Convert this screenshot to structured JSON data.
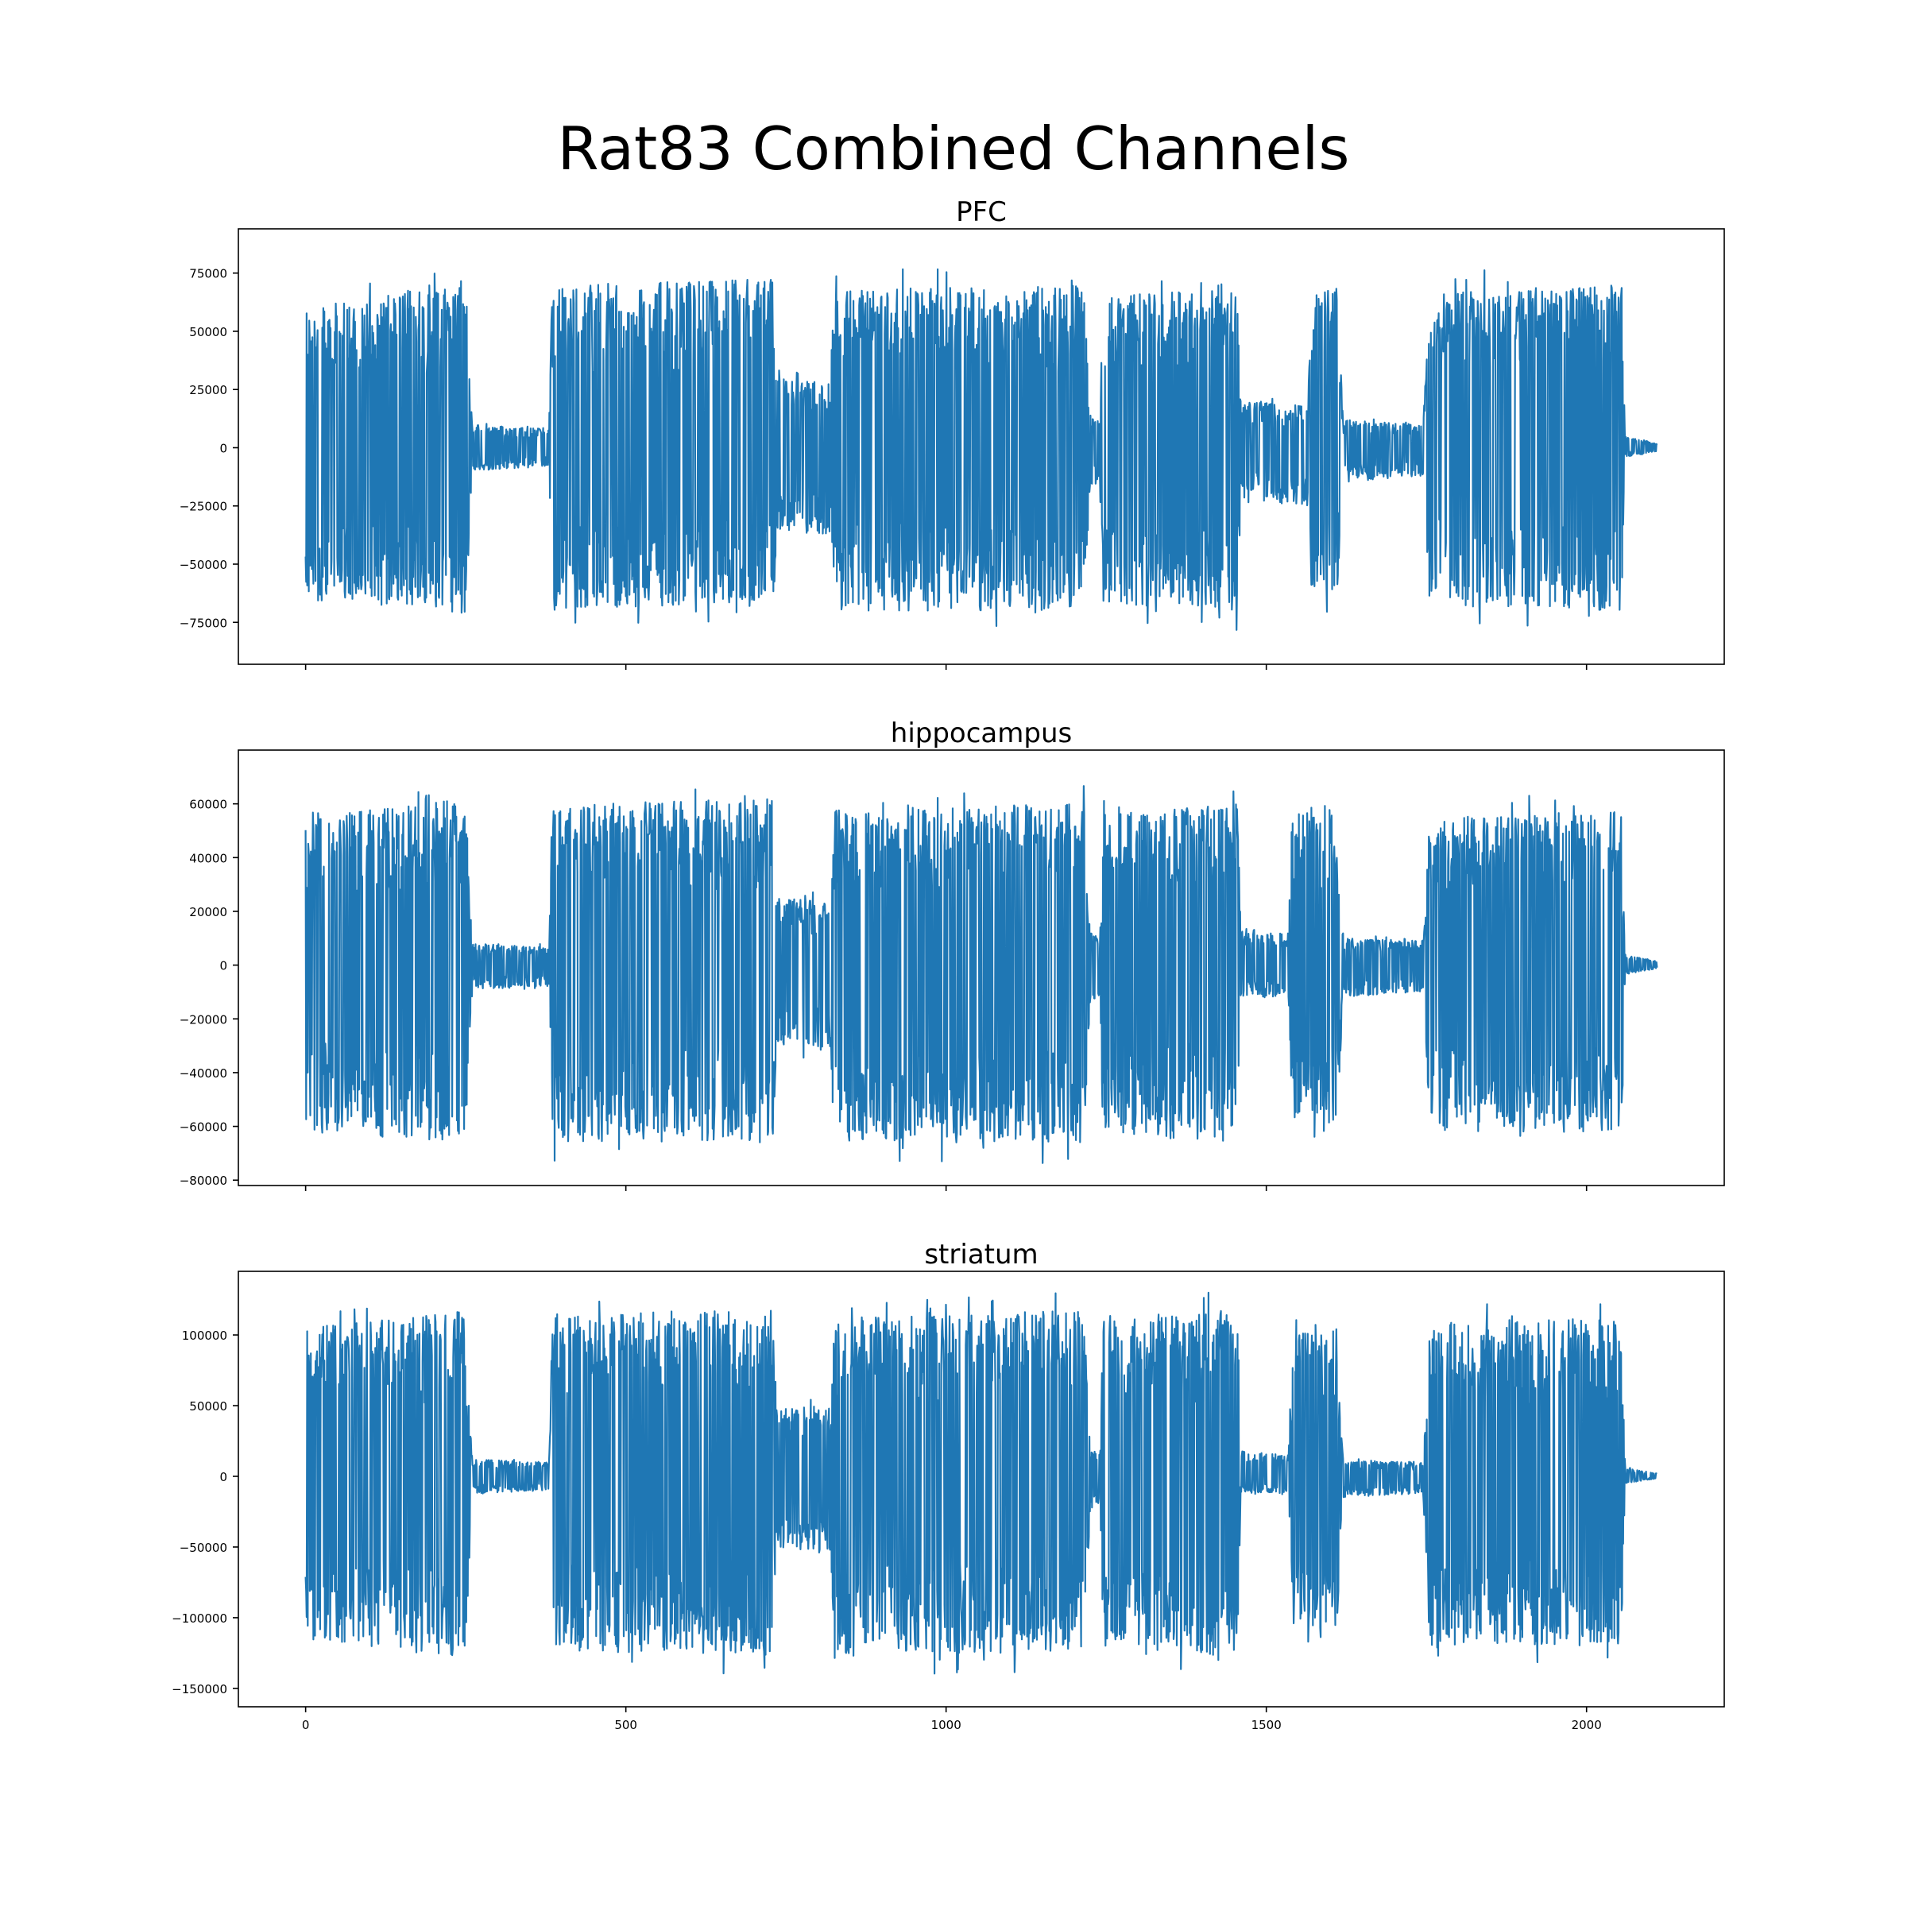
{
  "title": "Rat83 Combined Channels",
  "colors": {
    "series": "#1f77b4",
    "axis": "#000000",
    "background": "#ffffff"
  },
  "chart_data": [
    {
      "type": "line",
      "title": "PFC",
      "xlabel": "",
      "ylabel": "",
      "xlim": [
        -105,
        2215
      ],
      "ylim": [
        -93000,
        94000
      ],
      "xticks": [
        0,
        500,
        1000,
        1500,
        2000
      ],
      "xtick_labels": [
        "",
        "",
        "",
        "",
        ""
      ],
      "yticks": [
        75000,
        50000,
        25000,
        0,
        -25000,
        -50000,
        -75000
      ],
      "ytick_labels": [
        "75000",
        "50000",
        "25000",
        "0",
        "−25000",
        "−50000",
        "−75000"
      ],
      "grid": false,
      "legend": "none",
      "series": [
        {
          "x": [
            0,
            250,
            260,
            380,
            385,
            730,
            735,
            820,
            825,
            1215,
            1225,
            1240,
            1245,
            1455,
            1460,
            1565,
            1570,
            1610,
            1620,
            1745,
            1755,
            2055,
            2060,
            2110
          ],
          "y_max": [
            60000,
            72000,
            10000,
            8000,
            70000,
            73000,
            30000,
            28000,
            68000,
            70000,
            15000,
            12000,
            65000,
            70000,
            20000,
            18000,
            65000,
            70000,
            12000,
            10000,
            68000,
            70000,
            5000,
            2000
          ],
          "y_min": [
            -65000,
            -72000,
            -10000,
            -8000,
            -70000,
            -66000,
            -35000,
            -38000,
            -70000,
            -70000,
            -18000,
            -15000,
            -68000,
            -70000,
            -22000,
            -25000,
            -60000,
            -65000,
            -15000,
            -12000,
            -68000,
            -70000,
            -4000,
            -1500
          ]
        }
      ]
    },
    {
      "type": "line",
      "title": "hippocampus",
      "xlabel": "",
      "ylabel": "",
      "xlim": [
        -105,
        2215
      ],
      "ylim": [
        -82000,
        80000
      ],
      "xticks": [
        0,
        500,
        1000,
        1500,
        2000
      ],
      "xtick_labels": [
        "",
        "",
        "",
        "",
        ""
      ],
      "yticks": [
        60000,
        40000,
        20000,
        0,
        -20000,
        -40000,
        -60000,
        -80000
      ],
      "ytick_labels": [
        "60000",
        "40000",
        "20000",
        "0",
        "−20000",
        "−40000",
        "−60000",
        "−80000"
      ],
      "grid": false,
      "legend": "none",
      "series": [
        {
          "x": [
            0,
            250,
            260,
            380,
            385,
            730,
            735,
            820,
            825,
            1215,
            1225,
            1240,
            1245,
            1455,
            1460,
            1535,
            1540,
            1610,
            1620,
            1745,
            1755,
            2055,
            2060,
            2110
          ],
          "y_max": [
            55000,
            62000,
            8000,
            7000,
            60000,
            62000,
            25000,
            24000,
            58000,
            60000,
            12000,
            10000,
            56000,
            60000,
            14000,
            12000,
            58000,
            60000,
            10000,
            9000,
            55000,
            58000,
            4000,
            1500
          ],
          "y_min": [
            -62000,
            -66000,
            -9000,
            -8000,
            -66000,
            -66000,
            -30000,
            -32000,
            -66000,
            -66000,
            -14000,
            -12000,
            -62000,
            -66000,
            -12000,
            -12000,
            -58000,
            -60000,
            -12000,
            -10000,
            -62000,
            -62000,
            -3500,
            -1200
          ]
        }
      ]
    },
    {
      "type": "line",
      "title": "striatum",
      "xlabel": "",
      "ylabel": "",
      "xlim": [
        -105,
        2215
      ],
      "ylim": [
        -163000,
        145000
      ],
      "xticks": [
        0,
        500,
        1000,
        1500,
        2000
      ],
      "xtick_labels": [
        "0",
        "500",
        "1000",
        "1500",
        "2000"
      ],
      "yticks": [
        100000,
        50000,
        0,
        -50000,
        -100000,
        -150000
      ],
      "ytick_labels": [
        "100000",
        "50000",
        "0",
        "−50000",
        "−100000",
        "−150000"
      ],
      "grid": false,
      "legend": "none",
      "series": [
        {
          "x": [
            0,
            250,
            260,
            380,
            385,
            730,
            735,
            820,
            825,
            1215,
            1225,
            1240,
            1245,
            1455,
            1460,
            1535,
            1540,
            1610,
            1620,
            1745,
            1755,
            2055,
            2060,
            2110
          ],
          "y_max": [
            105000,
            118000,
            12000,
            10000,
            115000,
            118000,
            50000,
            48000,
            112000,
            118000,
            20000,
            15000,
            110000,
            118000,
            18000,
            15000,
            100000,
            105000,
            12000,
            10000,
            110000,
            112000,
            6000,
            2000
          ],
          "y_min": [
            -115000,
            -130000,
            -12000,
            -10000,
            -125000,
            -125000,
            -50000,
            -55000,
            -125000,
            -125000,
            -25000,
            -20000,
            -120000,
            -128000,
            -12000,
            -12000,
            -105000,
            -110000,
            -15000,
            -12000,
            -120000,
            -120000,
            -5000,
            -1500
          ]
        }
      ]
    }
  ]
}
